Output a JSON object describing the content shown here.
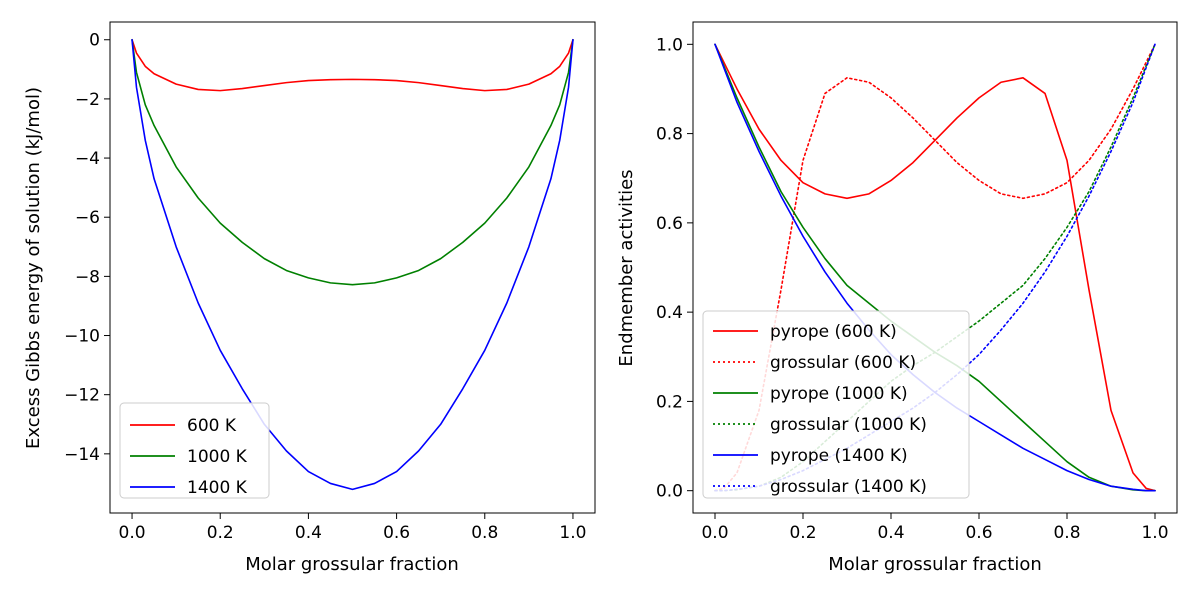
{
  "chart_data": [
    {
      "type": "line",
      "xlabel": "Molar grossular fraction",
      "ylabel": "Excess Gibbs energy of solution (kJ/mol)",
      "xlim": [
        -0.05,
        1.05
      ],
      "ylim": [
        -16.0,
        0.6
      ],
      "xticks": [
        0.0,
        0.2,
        0.4,
        0.6,
        0.8,
        1.0
      ],
      "xtick_labels": [
        "0.0",
        "0.2",
        "0.4",
        "0.6",
        "0.8",
        "1.0"
      ],
      "yticks": [
        0,
        -2,
        -4,
        -6,
        -8,
        -10,
        -12,
        -14
      ],
      "ytick_labels": [
        "0",
        "−2",
        "−4",
        "−6",
        "−8",
        "−10",
        "−12",
        "−14"
      ],
      "grid": false,
      "legend_position": "lower-left",
      "series": [
        {
          "name": "600 K",
          "color": "#ff0000",
          "style": "solid",
          "x": [
            0,
            0.01,
            0.03,
            0.05,
            0.1,
            0.15,
            0.2,
            0.25,
            0.3,
            0.35,
            0.4,
            0.45,
            0.5,
            0.55,
            0.6,
            0.65,
            0.7,
            0.75,
            0.8,
            0.85,
            0.9,
            0.95,
            0.97,
            0.99,
            1.0
          ],
          "y": [
            0,
            -0.45,
            -0.9,
            -1.15,
            -1.5,
            -1.68,
            -1.72,
            -1.65,
            -1.55,
            -1.45,
            -1.38,
            -1.35,
            -1.34,
            -1.35,
            -1.38,
            -1.45,
            -1.55,
            -1.65,
            -1.72,
            -1.68,
            -1.5,
            -1.15,
            -0.9,
            -0.45,
            0
          ]
        },
        {
          "name": "1000 K",
          "color": "#008000",
          "style": "solid",
          "x": [
            0,
            0.01,
            0.03,
            0.05,
            0.1,
            0.15,
            0.2,
            0.25,
            0.3,
            0.35,
            0.4,
            0.45,
            0.5,
            0.55,
            0.6,
            0.65,
            0.7,
            0.75,
            0.8,
            0.85,
            0.9,
            0.95,
            0.97,
            0.99,
            1.0
          ],
          "y": [
            0,
            -1.1,
            -2.2,
            -2.9,
            -4.3,
            -5.35,
            -6.2,
            -6.85,
            -7.4,
            -7.8,
            -8.05,
            -8.22,
            -8.28,
            -8.22,
            -8.05,
            -7.8,
            -7.4,
            -6.85,
            -6.2,
            -5.35,
            -4.3,
            -2.9,
            -2.2,
            -1.1,
            0
          ]
        },
        {
          "name": "1400 K",
          "color": "#0000ff",
          "style": "solid",
          "x": [
            0,
            0.01,
            0.03,
            0.05,
            0.1,
            0.15,
            0.2,
            0.25,
            0.3,
            0.35,
            0.4,
            0.45,
            0.5,
            0.55,
            0.6,
            0.65,
            0.7,
            0.75,
            0.8,
            0.85,
            0.9,
            0.95,
            0.97,
            0.99,
            1.0
          ],
          "y": [
            0,
            -1.6,
            -3.4,
            -4.7,
            -7.0,
            -8.9,
            -10.5,
            -11.8,
            -13.0,
            -13.9,
            -14.6,
            -15.0,
            -15.2,
            -15.0,
            -14.6,
            -13.9,
            -13.0,
            -11.8,
            -10.5,
            -8.9,
            -7.0,
            -4.7,
            -3.4,
            -1.6,
            0
          ]
        }
      ]
    },
    {
      "type": "line",
      "xlabel": "Molar grossular fraction",
      "ylabel": "Endmember activities",
      "xlim": [
        -0.05,
        1.05
      ],
      "ylim": [
        -0.05,
        1.05
      ],
      "xticks": [
        0.0,
        0.2,
        0.4,
        0.6,
        0.8,
        1.0
      ],
      "xtick_labels": [
        "0.0",
        "0.2",
        "0.4",
        "0.6",
        "0.8",
        "1.0"
      ],
      "yticks": [
        0.0,
        0.2,
        0.4,
        0.6,
        0.8,
        1.0
      ],
      "ytick_labels": [
        "0.0",
        "0.2",
        "0.4",
        "0.6",
        "0.8",
        "1.0"
      ],
      "grid": false,
      "legend_position": "lower-left",
      "series": [
        {
          "name": "pyrope (600 K)",
          "color": "#ff0000",
          "style": "solid",
          "x": [
            0,
            0.05,
            0.1,
            0.15,
            0.2,
            0.25,
            0.3,
            0.35,
            0.4,
            0.45,
            0.5,
            0.55,
            0.6,
            0.65,
            0.7,
            0.75,
            0.8,
            0.85,
            0.9,
            0.95,
            0.98,
            1.0
          ],
          "y": [
            1.0,
            0.9,
            0.81,
            0.74,
            0.69,
            0.665,
            0.655,
            0.665,
            0.695,
            0.735,
            0.785,
            0.835,
            0.88,
            0.915,
            0.925,
            0.89,
            0.74,
            0.45,
            0.18,
            0.04,
            0.005,
            0.0
          ]
        },
        {
          "name": "grossular (600 K)",
          "color": "#ff0000",
          "style": "dotted",
          "x": [
            0,
            0.02,
            0.05,
            0.1,
            0.15,
            0.2,
            0.25,
            0.3,
            0.35,
            0.4,
            0.45,
            0.5,
            0.55,
            0.6,
            0.65,
            0.7,
            0.75,
            0.8,
            0.85,
            0.9,
            0.95,
            1.0
          ],
          "y": [
            0.0,
            0.005,
            0.04,
            0.18,
            0.45,
            0.74,
            0.89,
            0.925,
            0.915,
            0.88,
            0.835,
            0.785,
            0.735,
            0.695,
            0.665,
            0.655,
            0.665,
            0.69,
            0.74,
            0.81,
            0.9,
            1.0
          ]
        },
        {
          "name": "pyrope (1000 K)",
          "color": "#008000",
          "style": "solid",
          "x": [
            0,
            0.05,
            0.1,
            0.15,
            0.2,
            0.25,
            0.3,
            0.35,
            0.4,
            0.45,
            0.5,
            0.55,
            0.6,
            0.65,
            0.7,
            0.75,
            0.8,
            0.85,
            0.9,
            0.95,
            0.98,
            1.0
          ],
          "y": [
            1.0,
            0.88,
            0.77,
            0.67,
            0.59,
            0.52,
            0.46,
            0.42,
            0.38,
            0.345,
            0.31,
            0.28,
            0.245,
            0.2,
            0.155,
            0.11,
            0.065,
            0.03,
            0.01,
            0.002,
            0.0,
            0.0
          ]
        },
        {
          "name": "grossular (1000 K)",
          "color": "#008000",
          "style": "dotted",
          "x": [
            0,
            0.02,
            0.05,
            0.1,
            0.15,
            0.2,
            0.25,
            0.3,
            0.35,
            0.4,
            0.45,
            0.5,
            0.55,
            0.6,
            0.65,
            0.7,
            0.75,
            0.8,
            0.85,
            0.9,
            0.95,
            1.0
          ],
          "y": [
            0.0,
            0.0,
            0.002,
            0.01,
            0.03,
            0.065,
            0.11,
            0.155,
            0.2,
            0.245,
            0.28,
            0.31,
            0.345,
            0.38,
            0.42,
            0.46,
            0.52,
            0.59,
            0.67,
            0.77,
            0.88,
            1.0
          ]
        },
        {
          "name": "pyrope (1400 K)",
          "color": "#0000ff",
          "style": "solid",
          "x": [
            0,
            0.05,
            0.1,
            0.15,
            0.2,
            0.25,
            0.3,
            0.35,
            0.4,
            0.45,
            0.5,
            0.55,
            0.6,
            0.65,
            0.7,
            0.75,
            0.8,
            0.85,
            0.9,
            0.95,
            0.98,
            1.0
          ],
          "y": [
            1.0,
            0.87,
            0.76,
            0.66,
            0.57,
            0.49,
            0.42,
            0.36,
            0.305,
            0.26,
            0.22,
            0.185,
            0.155,
            0.125,
            0.095,
            0.07,
            0.045,
            0.025,
            0.01,
            0.003,
            0.0,
            0.0
          ]
        },
        {
          "name": "grossular (1400 K)",
          "color": "#0000ff",
          "style": "dotted",
          "x": [
            0,
            0.02,
            0.05,
            0.1,
            0.15,
            0.2,
            0.25,
            0.3,
            0.35,
            0.4,
            0.45,
            0.5,
            0.55,
            0.6,
            0.65,
            0.7,
            0.75,
            0.8,
            0.85,
            0.9,
            0.95,
            1.0
          ],
          "y": [
            0.0,
            0.0,
            0.003,
            0.01,
            0.025,
            0.045,
            0.07,
            0.095,
            0.125,
            0.155,
            0.185,
            0.22,
            0.26,
            0.305,
            0.36,
            0.42,
            0.49,
            0.57,
            0.66,
            0.76,
            0.87,
            1.0
          ]
        }
      ]
    }
  ]
}
